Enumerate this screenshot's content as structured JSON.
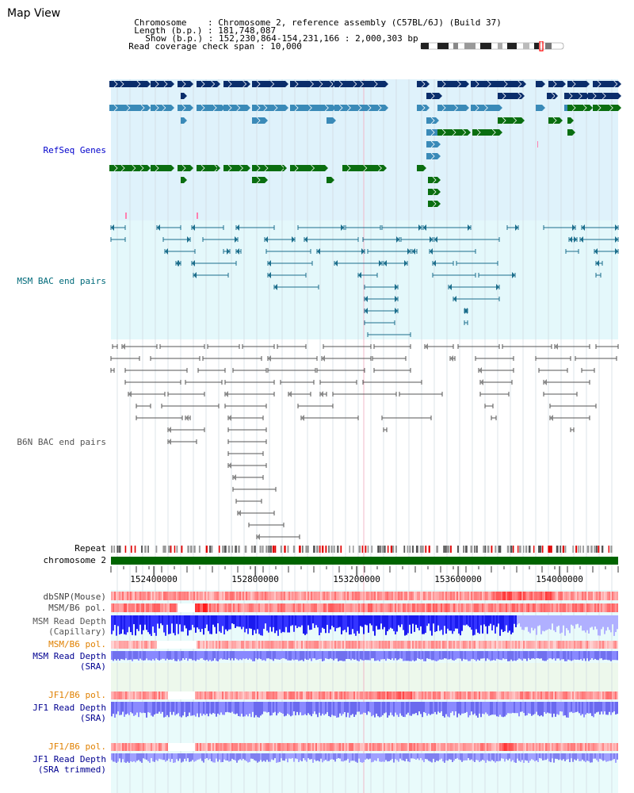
{
  "title": "Map View",
  "info": {
    "chromosome_key": "Chromosome",
    "chromosome_val": "Chromosome 2, reference assembly (C57BL/6J) (Build 37)",
    "length_key": "Length (b.p.)",
    "length_val": "181,748,087",
    "show_key": "Show (b.p.)",
    "show_val": "152,230,864-154,231,166 : 2,000,303 bp",
    "coverage_key": "Read coverage check span",
    "coverage_val": "10,000"
  },
  "tracks": {
    "refseq": "RefSeq Genes",
    "msm_bac": "MSM BAC end pairs",
    "b6n_bac": "B6N BAC end pairs",
    "repeat": "Repeat",
    "chromosome": "chromosome 2",
    "dbsnp": "dbSNP(Mouse)",
    "msm_b6_pol": "MSM/B6 pol.",
    "msm_depth_cap_1": "MSM Read Depth",
    "msm_depth_cap_2": "(Capillary)",
    "msm_b6_pol2": "MSM/B6 pol.",
    "msm_depth_sra_1": "MSM Read Depth",
    "msm_depth_sra_2": "(SRA)",
    "jf1_b6_pol": "JF1/B6 pol.",
    "jf1_depth_sra_1": "JF1 Read Depth",
    "jf1_depth_sra_2": "(SRA)",
    "jf1_b6_pol2": "JF1/B6 pol.",
    "jf1_depth_trim_1": "JF1 Read Depth",
    "jf1_depth_trim_2": "(SRA trimmed)"
  },
  "axis": {
    "ticks": [
      {
        "pos": 152400000,
        "label": "152400000"
      },
      {
        "pos": 152800000,
        "label": "152800000"
      },
      {
        "pos": 153200000,
        "label": "153200000"
      },
      {
        "pos": 153600000,
        "label": "153600000"
      },
      {
        "pos": 154000000,
        "label": "154000000"
      }
    ],
    "range": [
      152230864,
      154231166
    ]
  },
  "colors": {
    "refseq_dark": "#0a2d6b",
    "refseq_mid": "#3a8ab8",
    "refseq_green": "#0a6e10",
    "msm_bac": "#1c6e8c",
    "b6n_bac": "#555555",
    "chromosome_bar": "#006400",
    "label_blue": "#0000cc",
    "label_teal": "#006a7a",
    "label_orange": "#e08000",
    "label_navy": "#000090"
  }
}
